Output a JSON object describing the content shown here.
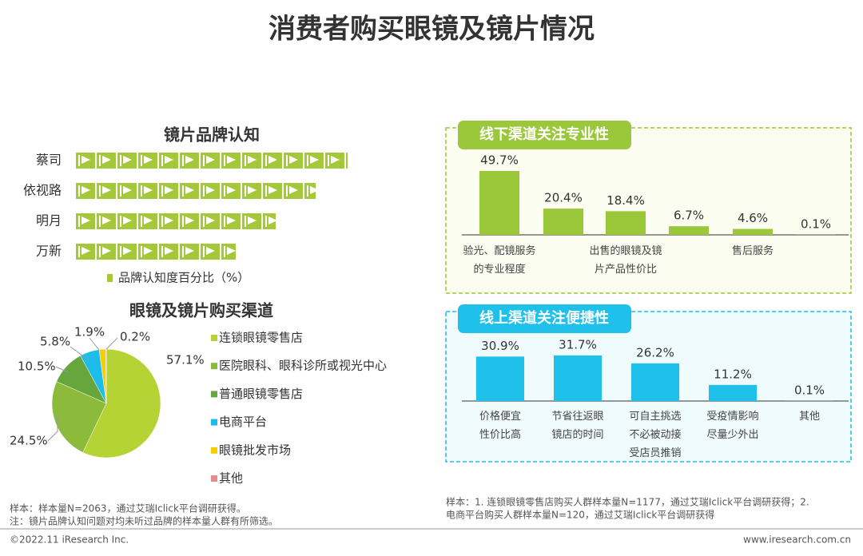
{
  "header": {
    "title": "消费者购买眼镜及镜片情况"
  },
  "chart_data": [
    {
      "type": "pictogram",
      "title": "镜片品牌认知",
      "categories": [
        "蔡司",
        "依视路",
        "明月",
        "万新"
      ],
      "series": [
        {
          "name": "品牌认知度百分比（%）",
          "color": "#a5c83a",
          "values": [
            68,
            60,
            50,
            40
          ]
        }
      ]
    },
    {
      "type": "pie",
      "title": "眼镜及镜片购买渠道",
      "categories": [
        "连锁眼镜零售店",
        "医院眼科、眼科诊所或视光中心",
        "普通眼镜零售店",
        "电商平台",
        "眼镜批发市场",
        "其他"
      ],
      "values": [
        57.1,
        24.5,
        10.5,
        5.8,
        1.9,
        0.2
      ],
      "value_labels": [
        "57.1%",
        "24.5%",
        "10.5%",
        "5.8%",
        "1.9%",
        "0.2%"
      ],
      "colors": [
        "#b5d334",
        "#8cbb3c",
        "#67a53d",
        "#1cbde8",
        "#f5cf00",
        "#e88a8a"
      ]
    },
    {
      "type": "bar",
      "title": "线下渠道关注专业性",
      "categories": [
        "验光、配镜服务的专业程度",
        null,
        "出售的眼镜及镜片产品性价比",
        null,
        "售后服务",
        null
      ],
      "values": [
        49.7,
        20.4,
        18.4,
        6.7,
        4.6,
        0.1
      ],
      "value_labels": [
        "49.7%",
        "20.4%",
        "18.4%",
        "6.7%",
        "4.6%",
        "0.1%"
      ],
      "color": "#9bc73a"
    },
    {
      "type": "bar",
      "title": "线上渠道关注便捷性",
      "categories": [
        "价格便宜\n性价比高",
        "节省往返眼\n镜店的时间",
        "可自主挑选\n不必被动接\n受店员推销",
        "受疫情影响\n尽量少外出",
        "其他"
      ],
      "values": [
        30.9,
        31.7,
        26.2,
        11.2,
        0.1
      ],
      "value_labels": [
        "30.9%",
        "31.7%",
        "26.2%",
        "11.2%",
        "0.1%"
      ],
      "color": "#1fc0ea"
    }
  ],
  "footer": {
    "notes_left": [
      "样本：样本量N=2063，通过艾瑞Iclick平台调研获得。",
      "注：镜片品牌认知问题对均未听过品牌的样本量人群有所筛选。"
    ],
    "notes_right": [
      "样本：1. 连锁眼镜零售店购买人群样本量N=1177，通过艾瑞Iclick平台调研获得；2.",
      "电商平台购买人群样本量N=120，通过艾瑞Iclick平台调研获得"
    ],
    "copyright": "©2022.11 iResearch Inc.",
    "website": "www.iresearch.com.cn"
  }
}
